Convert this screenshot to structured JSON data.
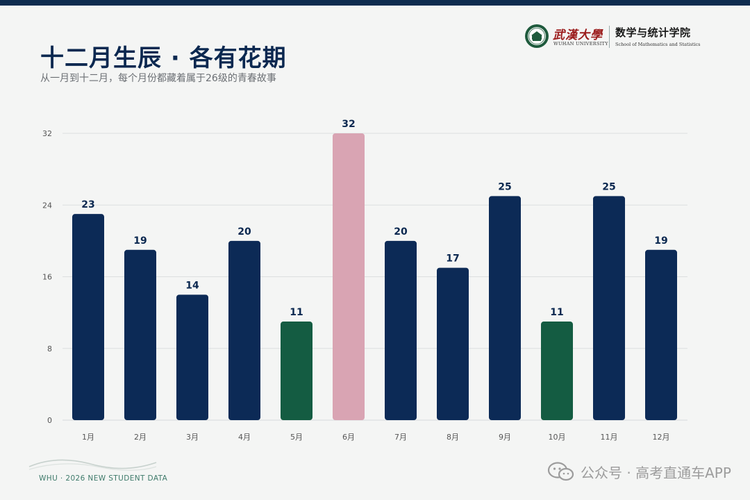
{
  "header": {
    "title": "十二月生辰 · 各有花期",
    "subtitle": "从一月到十二月，每个月份都藏着属于26级的青春故事"
  },
  "logo": {
    "calligraphy": "武漢大學",
    "university_en": "WUHAN UNIVERSITY",
    "school_cn": "数学与统计学院",
    "school_en": "School of Mathematics and Statistics"
  },
  "footer": {
    "text": "WHU · 2026 NEW STUDENT DATA"
  },
  "watermark": {
    "text": "公众号 · 高考直通车APP",
    "icon": "wechat-icon"
  },
  "colors": {
    "navy": "#0c2a56",
    "green": "#145c42",
    "pink": "#d9a4b3",
    "axis_text": "#555555",
    "grid": "#dcdfe0"
  },
  "chart_data": {
    "type": "bar",
    "categories": [
      "1月",
      "2月",
      "3月",
      "4月",
      "5月",
      "6月",
      "7月",
      "8月",
      "9月",
      "10月",
      "11月",
      "12月"
    ],
    "values": [
      23,
      19,
      14,
      20,
      11,
      32,
      20,
      17,
      25,
      11,
      25,
      19
    ],
    "bar_colors": [
      "navy",
      "navy",
      "navy",
      "navy",
      "green",
      "pink",
      "navy",
      "navy",
      "navy",
      "green",
      "navy",
      "navy"
    ],
    "ylim": [
      0,
      32
    ],
    "yticks": [
      0,
      8,
      16,
      24,
      32
    ],
    "grid": true,
    "data_labels": true,
    "title": "",
    "xlabel": "",
    "ylabel": ""
  }
}
